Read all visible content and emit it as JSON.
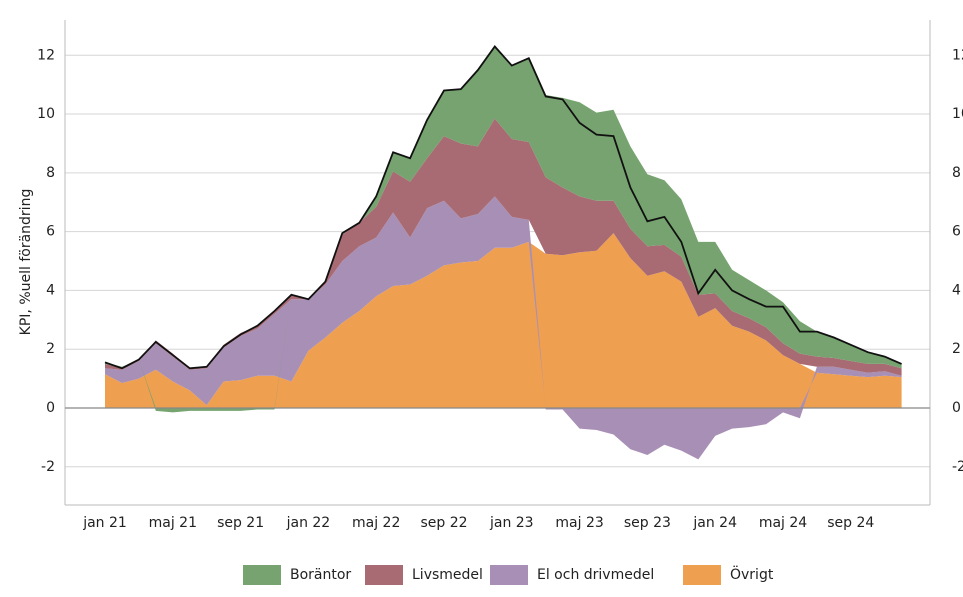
{
  "chart_data": {
    "type": "stacked-area",
    "y_axis_label": "KPI, %uell förändring",
    "categories": [
      "jan 21",
      null,
      null,
      null,
      "maj 21",
      null,
      null,
      null,
      "sep 21",
      null,
      null,
      null,
      "jan 22",
      null,
      null,
      null,
      "maj 22",
      null,
      null,
      null,
      "sep 22",
      null,
      null,
      null,
      "jan 23",
      null,
      null,
      null,
      "maj 23",
      null,
      null,
      null,
      "sep 23",
      null,
      null,
      null,
      "jan 24",
      null,
      null,
      null,
      "maj 24",
      null,
      null,
      null,
      "sep 24",
      null,
      null,
      null
    ],
    "series": [
      {
        "name": "Boräntor",
        "color": "#76a36f",
        "values": [
          0.05,
          0.05,
          0,
          -0.1,
          -0.15,
          -0.1,
          -0.1,
          -0.1,
          -0.1,
          -0.05,
          -0.05,
          0,
          0,
          0,
          0.05,
          0,
          0.35,
          0.65,
          0.8,
          1.3,
          1.55,
          1.85,
          2.6,
          2.45,
          2.5,
          2.85,
          2.8,
          3.05,
          3.2,
          3.0,
          3.1,
          2.8,
          2.45,
          2.2,
          1.95,
          1.8,
          1.75,
          1.4,
          1.3,
          1.25,
          1.4,
          1.1,
          0.85,
          0.7,
          0.55,
          0.4,
          0.25,
          0.15
        ]
      },
      {
        "name": "Livsmedel",
        "color": "#a86b73",
        "values": [
          0.15,
          0.05,
          0.05,
          0.1,
          0.1,
          0.05,
          0.05,
          0.1,
          0.1,
          0.1,
          0.1,
          0.15,
          0,
          0.1,
          0.9,
          0.8,
          1.05,
          1.4,
          1.9,
          1.7,
          2.2,
          2.55,
          2.3,
          2.65,
          2.65,
          2.65,
          2.6,
          2.3,
          1.9,
          1.7,
          1.1,
          1.0,
          1.0,
          0.9,
          0.85,
          0.75,
          0.5,
          0.5,
          0.45,
          0.45,
          0.4,
          0.35,
          0.35,
          0.3,
          0.3,
          0.3,
          0.25,
          0.25
        ]
      },
      {
        "name": "El och drivmedel",
        "color": "#a88fb5",
        "values": [
          0.2,
          0.45,
          0.6,
          0.9,
          0.85,
          0.7,
          1.25,
          1.15,
          1.5,
          1.6,
          2.1,
          2.8,
          1.75,
          1.8,
          2.1,
          2.2,
          2.0,
          2.5,
          1.6,
          2.3,
          2.2,
          1.5,
          1.6,
          1.75,
          1.05,
          0.75,
          -0.05,
          -0.05,
          -0.7,
          -0.75,
          -0.9,
          -1.4,
          -1.6,
          -1.25,
          -1.45,
          -1.75,
          -0.95,
          -0.7,
          -0.65,
          -0.55,
          -0.15,
          -0.35,
          0.2,
          0.25,
          0.2,
          0.15,
          0.15,
          0.05
        ]
      },
      {
        "name": "Övrigt",
        "color": "#ef9f50",
        "values": [
          1.15,
          0.85,
          1.0,
          1.3,
          0.9,
          0.6,
          0.1,
          0.9,
          0.95,
          1.1,
          1.1,
          0.9,
          1.95,
          2.4,
          2.9,
          3.3,
          3.8,
          4.15,
          4.2,
          4.5,
          4.85,
          4.95,
          5.0,
          5.45,
          5.45,
          5.65,
          5.25,
          5.2,
          5.3,
          5.35,
          5.95,
          5.1,
          4.5,
          4.65,
          4.3,
          3.1,
          3.4,
          2.8,
          2.6,
          2.3,
          1.8,
          1.5,
          1.2,
          1.15,
          1.1,
          1.05,
          1.1,
          1.05
        ]
      }
    ],
    "total": {
      "color": "#111111",
      "values": [
        1.55,
        1.35,
        1.65,
        2.25,
        1.8,
        1.35,
        1.4,
        2.1,
        2.5,
        2.8,
        3.3,
        3.85,
        3.7,
        4.3,
        5.95,
        6.3,
        7.2,
        8.7,
        8.5,
        9.8,
        10.8,
        10.85,
        11.5,
        12.3,
        11.65,
        11.9,
        10.6,
        10.5,
        9.7,
        9.3,
        9.25,
        7.5,
        6.35,
        6.5,
        5.65,
        3.9,
        4.7,
        4.0,
        3.7,
        3.45,
        3.45,
        2.6,
        2.6,
        2.4,
        2.15,
        1.9,
        1.75,
        1.5
      ]
    },
    "ylim": [
      -3.3,
      13.2
    ],
    "yticks": [
      -2,
      0,
      2,
      4,
      6,
      8,
      10,
      12
    ],
    "grid": true
  }
}
